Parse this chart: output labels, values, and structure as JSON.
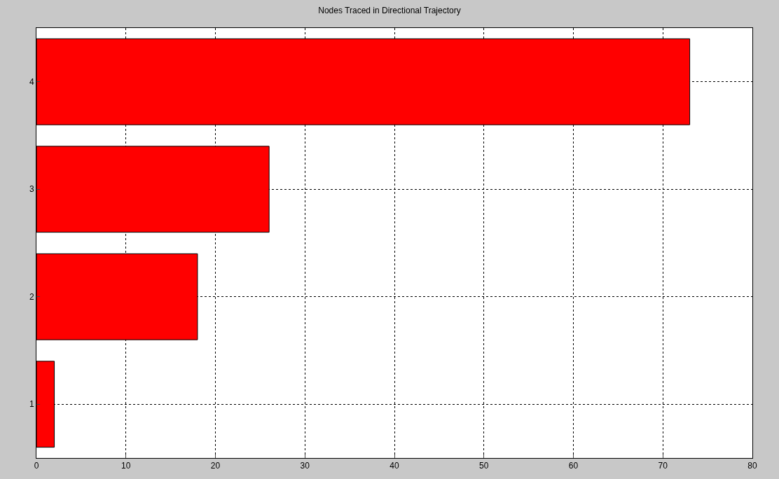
{
  "chart_data": {
    "type": "bar",
    "title": "Nodes Traced in Directional Trajectory",
    "orientation": "horizontal",
    "categories": [
      "4",
      "3",
      "2",
      "1"
    ],
    "values": [
      73,
      26,
      18,
      2
    ],
    "color": "#ff0000",
    "xlim": [
      0,
      80
    ],
    "xticks": [
      0,
      10,
      20,
      30,
      40,
      50,
      60,
      70,
      80
    ],
    "grid": true,
    "legend": false
  }
}
